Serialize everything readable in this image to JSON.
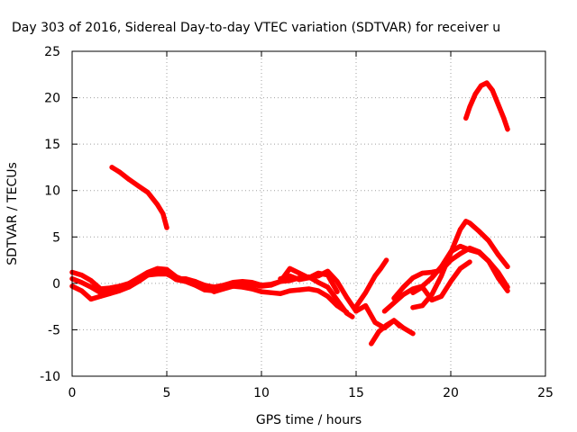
{
  "chart_data": {
    "type": "line",
    "title": "Day 303 of 2016, Sidereal Day-to-day VTEC variation (SDTVAR) for receiver u",
    "xlabel": "GPS time / hours",
    "ylabel": "SDTVAR / TECUs",
    "xlim": [
      0,
      25
    ],
    "ylim": [
      -10,
      25
    ],
    "xticks": [
      0,
      5,
      10,
      15,
      20,
      25
    ],
    "yticks": [
      -10,
      -5,
      0,
      5,
      10,
      15,
      20,
      25
    ],
    "grid": true,
    "color": "#ff0000",
    "series": [
      {
        "name": "trace-1",
        "x": [
          0,
          0.5,
          1,
          1.5,
          2,
          2.5,
          3,
          3.5,
          4,
          4.5,
          5,
          5.5,
          6,
          6.5,
          7,
          7.5,
          8,
          8.5,
          9,
          9.5,
          10,
          10.5,
          11,
          11.5,
          12,
          12.5,
          13,
          13.5,
          14,
          14.5,
          14.8
        ],
        "y": [
          1.2,
          0.9,
          0.3,
          -0.6,
          -0.5,
          -0.3,
          0,
          0.6,
          1.2,
          1.6,
          1.5,
          0.7,
          0.3,
          0.2,
          -0.2,
          -0.4,
          -0.2,
          0.1,
          0.2,
          0.1,
          -0.2,
          -0.1,
          0.2,
          0.3,
          0.6,
          0.7,
          0.1,
          -0.4,
          -1.8,
          -3.2,
          -3.6
        ]
      },
      {
        "name": "trace-2",
        "x": [
          0,
          0.5,
          1,
          1.5,
          2,
          2.5,
          3,
          3.5,
          4,
          4.5,
          5,
          5.5,
          6,
          6.5,
          7,
          7.5,
          8,
          8.5,
          9,
          9.5,
          10,
          10.5,
          11,
          11.5,
          12,
          12.5,
          13,
          13.5,
          14,
          14.5
        ],
        "y": [
          -0.3,
          -0.8,
          -1.7,
          -1.4,
          -1.1,
          -0.8,
          -0.4,
          0.2,
          0.9,
          1.3,
          1.1,
          0.4,
          0.2,
          -0.2,
          -0.7,
          -0.8,
          -0.5,
          -0.3,
          -0.4,
          -0.6,
          -0.9,
          -1.0,
          -1.1,
          -0.8,
          -0.7,
          -0.6,
          -0.8,
          -1.4,
          -2.4,
          -3.1
        ]
      },
      {
        "name": "trace-3",
        "x": [
          0,
          0.5,
          1,
          1.5,
          2,
          2.5,
          3,
          3.5,
          4,
          4.5,
          5,
          5.5,
          6,
          6.5,
          7,
          7.5,
          8,
          8.5,
          9,
          9.5,
          10,
          10.5,
          11,
          11.5,
          12,
          12.5,
          13,
          13.5,
          14
        ],
        "y": [
          0.5,
          0.1,
          -0.4,
          -1.0,
          -0.9,
          -0.7,
          -0.3,
          0.4,
          0.9,
          1.0,
          1.0,
          0.5,
          0.5,
          0.2,
          -0.3,
          -0.9,
          -0.6,
          -0.3,
          0,
          -0.1,
          -0.3,
          -0.2,
          0.2,
          1.6,
          1.1,
          0.6,
          1.1,
          0.9,
          -0.9
        ]
      },
      {
        "name": "trace-4",
        "x": [
          11,
          11.5,
          12,
          12.5,
          13,
          13.5,
          14,
          14.5,
          15
        ],
        "y": [
          0.5,
          0.8,
          0.4,
          0.6,
          0.8,
          1.3,
          0.2,
          -1.5,
          -3.0
        ]
      },
      {
        "name": "trace-5",
        "x": [
          2.1,
          2.5,
          3,
          3.5,
          4,
          4.5,
          4.8,
          5.0
        ],
        "y": [
          12.5,
          12.0,
          11.2,
          10.5,
          9.8,
          8.5,
          7.5,
          6.0
        ]
      },
      {
        "name": "trace-6",
        "x": [
          15,
          15.5,
          16,
          16.3,
          16.6
        ],
        "y": [
          -2.5,
          -1.0,
          0.8,
          1.6,
          2.5
        ]
      },
      {
        "name": "trace-7",
        "x": [
          15,
          15.5,
          16,
          16.5,
          17,
          17.5,
          18
        ],
        "y": [
          -3.0,
          -2.4,
          -4.2,
          -4.8,
          -4.0,
          -4.8,
          -5.4
        ]
      },
      {
        "name": "trace-8",
        "x": [
          15.8,
          16.2,
          16.6,
          17,
          17.3
        ],
        "y": [
          -6.5,
          -5.2,
          -4.5,
          -4.0,
          -4.6
        ]
      },
      {
        "name": "trace-9",
        "x": [
          16.5,
          17,
          17.5,
          18,
          18.5,
          19,
          19.5,
          20,
          20.5,
          21,
          21.5,
          22,
          22.5,
          23
        ],
        "y": [
          -3.0,
          -2.1,
          -1.2,
          -0.6,
          -0.3,
          0.6,
          1.8,
          3.4,
          4.0,
          3.6,
          3.3,
          2.4,
          0.6,
          -0.8
        ]
      },
      {
        "name": "trace-10",
        "x": [
          17,
          17.5,
          18,
          18.5,
          19,
          19.5,
          20,
          20.5,
          21,
          21.5,
          22,
          22.5,
          23
        ],
        "y": [
          -1.6,
          -0.4,
          0.6,
          1.1,
          1.2,
          1.4,
          2.5,
          3.2,
          3.8,
          3.4,
          2.4,
          1.2,
          -0.4
        ]
      },
      {
        "name": "trace-11",
        "x": [
          18,
          18.5,
          19,
          19.5,
          20,
          20.5,
          20.8,
          21,
          21.5,
          22,
          22.5,
          23
        ],
        "y": [
          -2.6,
          -2.4,
          -1.2,
          0.8,
          3.3,
          5.8,
          6.7,
          6.5,
          5.6,
          4.6,
          3.1,
          1.8
        ]
      },
      {
        "name": "trace-12",
        "x": [
          18,
          18.5,
          19,
          19.5,
          20,
          20.5,
          21
        ],
        "y": [
          -1.0,
          -0.4,
          -1.8,
          -1.4,
          0.2,
          1.6,
          2.3
        ]
      },
      {
        "name": "trace-13",
        "x": [
          20.8,
          21,
          21.3,
          21.6,
          21.9,
          22.2,
          22.5,
          22.8,
          23.0
        ],
        "y": [
          17.8,
          19.0,
          20.4,
          21.3,
          21.6,
          20.8,
          19.3,
          17.8,
          16.6
        ]
      }
    ]
  }
}
